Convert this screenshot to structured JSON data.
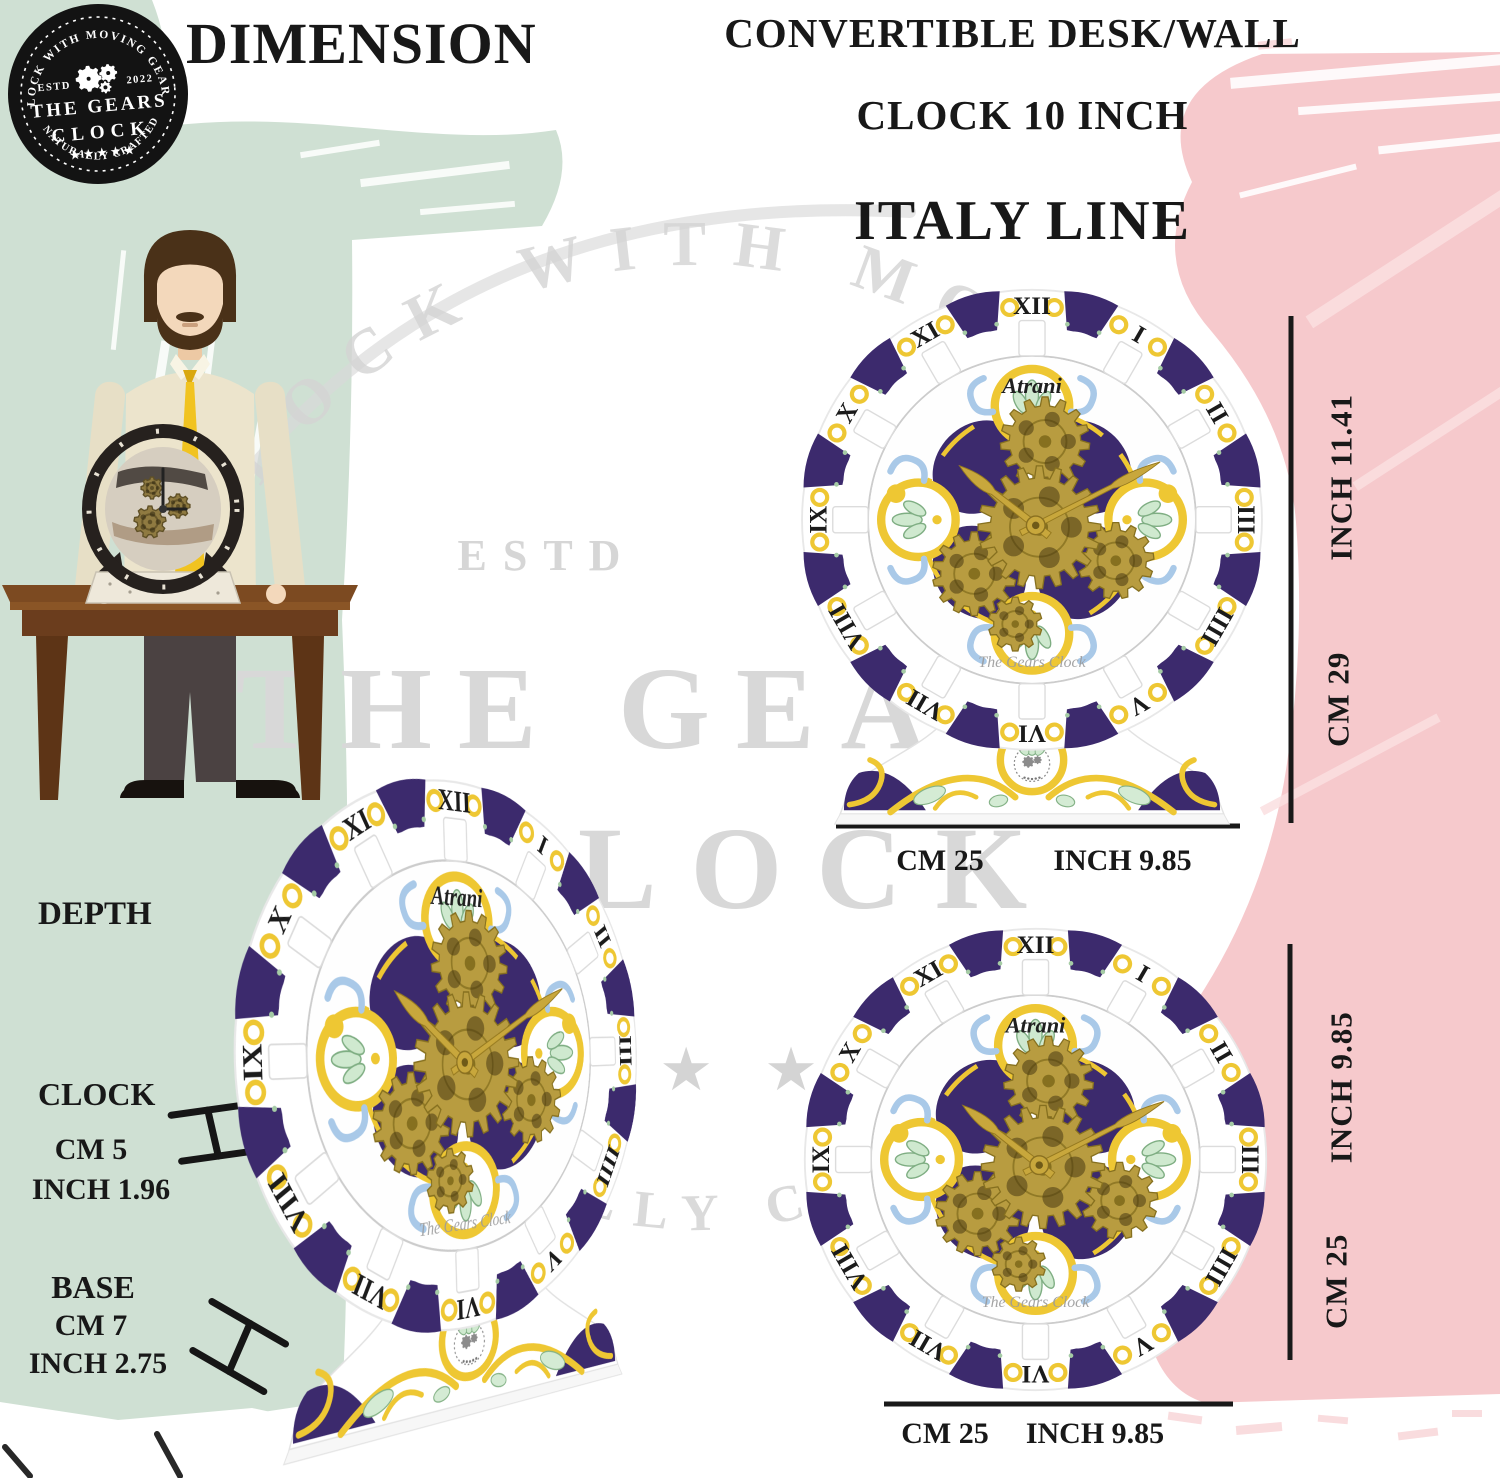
{
  "badge": {
    "arc_top": "CLOCK WITH MOVING GEARS",
    "estd": "ESTD",
    "year": "2022",
    "name1": "THE GEARS",
    "name2": "CLOCK",
    "stars": "★★★★★",
    "arc_bottom": "NATURALLY CRAFTED"
  },
  "title": "DIMENSION",
  "product": {
    "line1": "CONVERTIBLE DESK/WALL",
    "line2": "CLOCK 10 INCH",
    "line3": "ITALY LINE"
  },
  "clock": {
    "brand": "Atrani",
    "maker": "The Gears Clock",
    "numerals": [
      "XII",
      "I",
      "II",
      "III",
      "IIII",
      "V",
      "VI",
      "VII",
      "VIII",
      "IX",
      "X",
      "XI"
    ]
  },
  "desk_view": {
    "height_inch": "INCH 11.41",
    "height_cm": "CM 29",
    "width_cm": "CM 25",
    "width_inch": "INCH 9.85"
  },
  "wall_view": {
    "height_inch": "INCH 9.85",
    "height_cm": "CM 25",
    "width_cm": "CM 25",
    "width_inch": "INCH 9.85"
  },
  "depth_panel": {
    "heading": "DEPTH",
    "clock_label": "CLOCK",
    "clock_cm": "CM 5",
    "clock_inch": "INCH 1.96",
    "base_label": "BASE",
    "base_cm": "CM 7",
    "base_inch": "INCH 2.75"
  },
  "watermark": {
    "arc_top": "CLOCK WITH MOVING",
    "estd": "ESTD",
    "big1": "THE GEARS",
    "big2": "CLOCK",
    "stars": "★ ★ ★ ★ ★",
    "arc_bottom": "NATURALLY CRAFTED"
  },
  "colors": {
    "green": "#cfe0d3",
    "pink": "#f6c9cc",
    "pink_light": "#fbdfe1",
    "purple": "#3c2a6d",
    "gold": "#b89c40",
    "yellow": "#eec733",
    "blue": "#a9c9e8",
    "leaf": "#cfe9cf",
    "black": "#1a1a1a",
    "watermark_gray": "#d8d8d8",
    "table_brown": "#6b3d1d",
    "tie_yellow": "#f1c320"
  }
}
